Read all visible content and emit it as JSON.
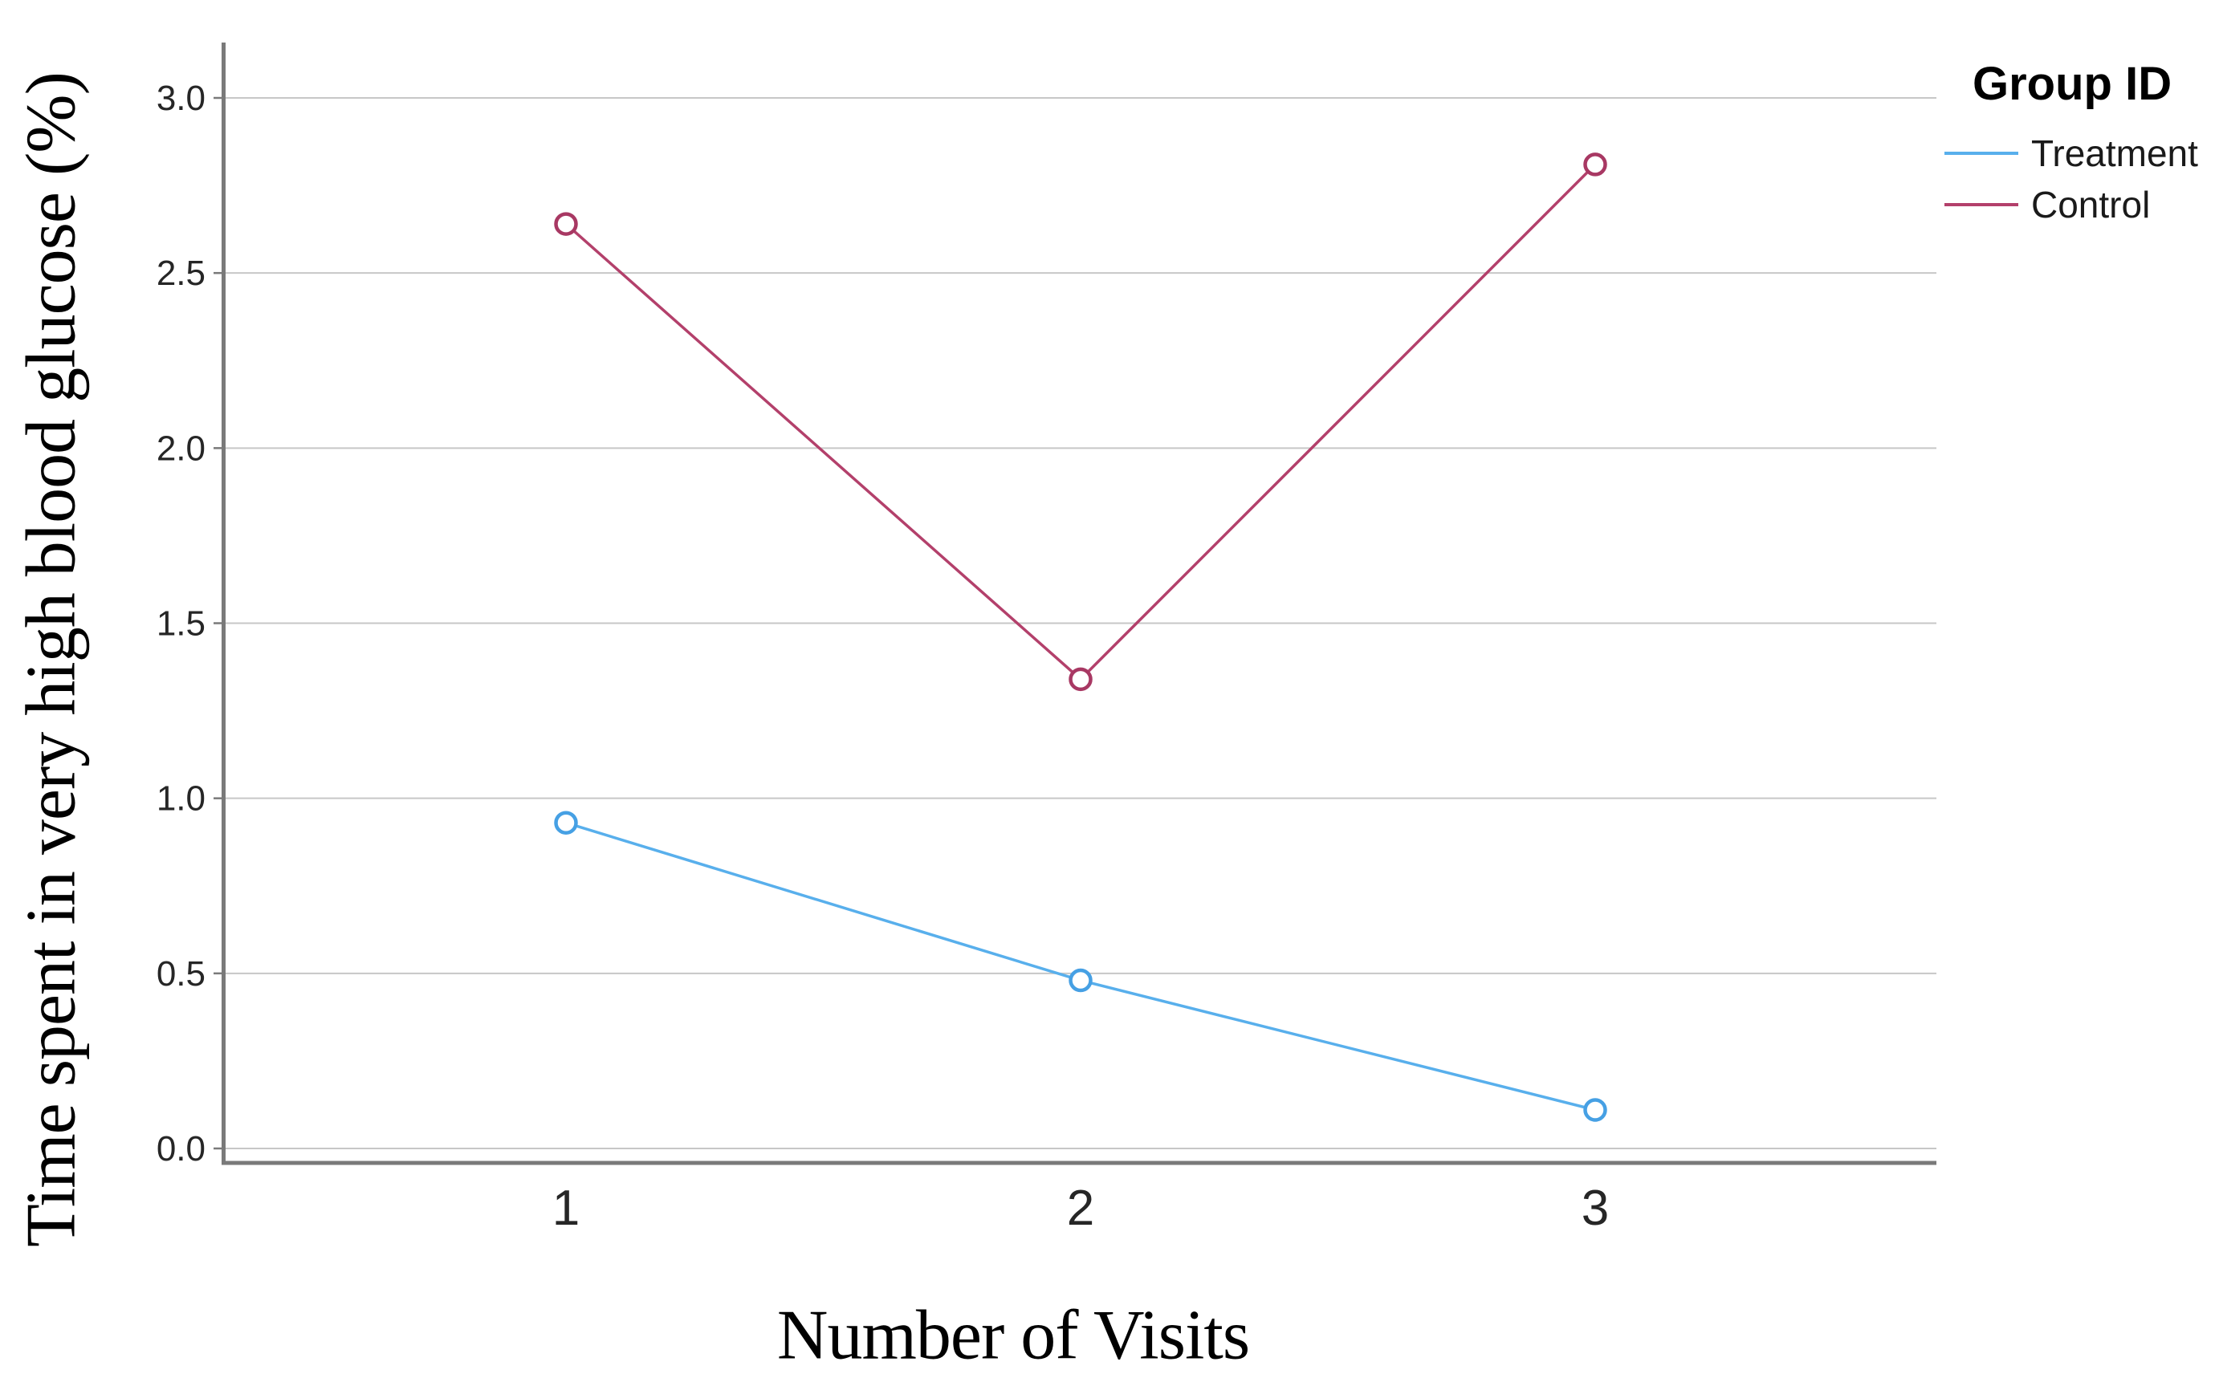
{
  "chart_data": {
    "type": "line",
    "title": "",
    "xlabel": "Number of Visits",
    "ylabel": "Time spent in very high blood glucose (%)",
    "x": [
      1,
      2,
      3
    ],
    "xtick_labels": [
      "1",
      "2",
      "3"
    ],
    "ytick_labels": [
      "0.0",
      "0.5",
      "1.0",
      "1.5",
      "2.0",
      "2.5",
      "3.0"
    ],
    "ylim": [
      0.0,
      3.0
    ],
    "grid": "horizontal",
    "legend": {
      "title": "Group ID",
      "position": "top-right"
    },
    "series": [
      {
        "name": "Treatment",
        "color": "#58AFEC",
        "marker_color": "#46A0E4",
        "marker": "open-circle",
        "values": [
          0.93,
          0.48,
          0.11
        ]
      },
      {
        "name": "Control",
        "color": "#B3406B",
        "marker_color": "#A83863",
        "marker": "open-circle",
        "values": [
          2.64,
          1.34,
          2.81
        ]
      }
    ],
    "colors": {
      "gridline": "#C7C7C7",
      "axis": "#7A7A7A",
      "tick_text": "#262626",
      "background": "#FFFFFF"
    }
  }
}
